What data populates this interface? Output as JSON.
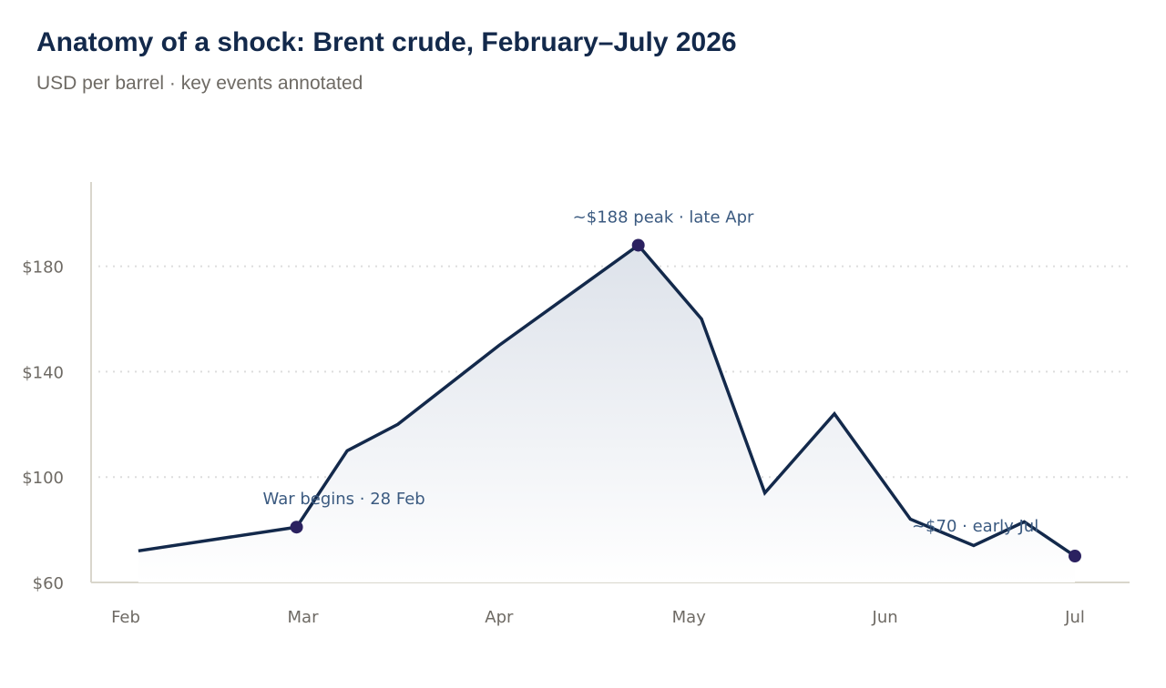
{
  "chart_data": {
    "type": "line",
    "title": "Anatomy of a shock: Brent crude, February–July 2026",
    "subtitle": "USD per barrel · key events annotated",
    "xlabel": "",
    "ylabel": "",
    "x_tick_labels": [
      "Feb",
      "Mar",
      "Apr",
      "May",
      "Jun",
      "Jul"
    ],
    "x_range": [
      "2026-02-01",
      "2026-07-01"
    ],
    "y_ticks": [
      60,
      100,
      140,
      180
    ],
    "y_tick_labels": [
      "$60",
      "$100",
      "$140",
      "$180"
    ],
    "ylim": [
      60,
      212
    ],
    "grid": "horizontal dotted",
    "area_fill": true,
    "series": [
      {
        "color": "#13294b",
        "points": [
          {
            "date": "2026-02-03",
            "value": 72
          },
          {
            "date": "2026-02-28",
            "value": 81
          },
          {
            "date": "2026-03-08",
            "value": 110
          },
          {
            "date": "2026-03-16",
            "value": 120
          },
          {
            "date": "2026-04-01",
            "value": 150
          },
          {
            "date": "2026-04-23",
            "value": 188
          },
          {
            "date": "2026-05-03",
            "value": 160
          },
          {
            "date": "2026-05-13",
            "value": 94
          },
          {
            "date": "2026-05-24",
            "value": 124
          },
          {
            "date": "2026-06-05",
            "value": 84
          },
          {
            "date": "2026-06-15",
            "value": 74
          },
          {
            "date": "2026-06-23",
            "value": 83
          },
          {
            "date": "2026-07-01",
            "value": 70
          }
        ]
      }
    ],
    "annotations": [
      {
        "date": "2026-02-28",
        "value": 81,
        "label": "War begins · 28 Feb"
      },
      {
        "date": "2026-04-23",
        "value": 188,
        "label": "~$188 peak · late Apr"
      },
      {
        "date": "2026-07-01",
        "value": 70,
        "label": "~$70 · early Jul"
      }
    ],
    "colors": {
      "line": "#13294b",
      "marker": "#2b2160",
      "annotation_text": "#3b5a80",
      "axis_text": "#6e6a64",
      "grid": "#dddddd",
      "axis": "#d9d6cc",
      "area_top": "#dde2ea",
      "area_bottom": "#ffffff"
    }
  }
}
